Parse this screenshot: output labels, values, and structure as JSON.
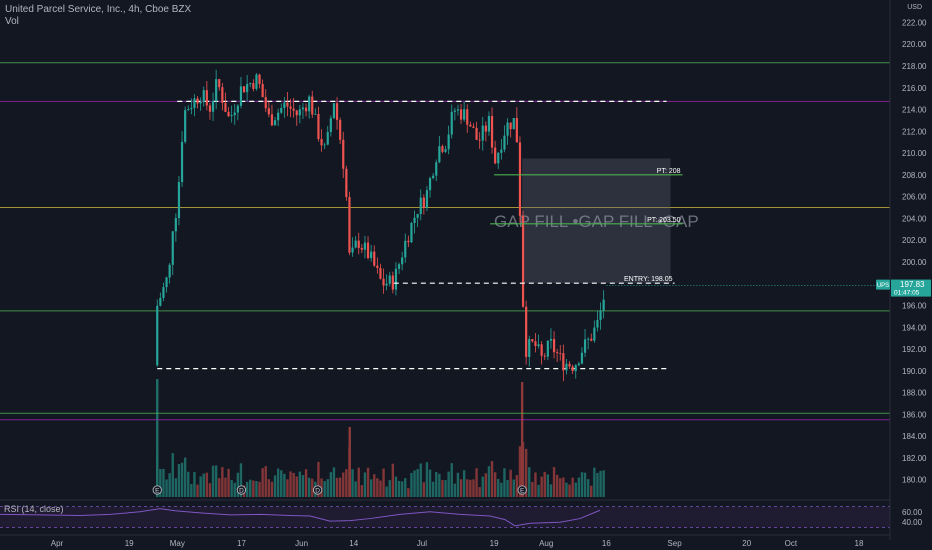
{
  "header": {
    "title": "United Parcel Service, Inc., 4h, Cboe BZX",
    "vol_label": "Vol",
    "currency": "USD"
  },
  "rsi": {
    "label": "RSI (14, close)",
    "ticks": [
      "60.00",
      "40.00"
    ],
    "ylim": [
      25,
      75
    ],
    "points": [
      [
        0,
        55
      ],
      [
        40,
        54
      ],
      [
        80,
        53
      ],
      [
        110,
        55
      ],
      [
        140,
        60
      ],
      [
        160,
        66
      ],
      [
        175,
        62
      ],
      [
        200,
        58
      ],
      [
        230,
        54
      ],
      [
        260,
        55
      ],
      [
        290,
        53
      ],
      [
        310,
        52
      ],
      [
        330,
        42
      ],
      [
        350,
        43
      ],
      [
        370,
        47
      ],
      [
        400,
        55
      ],
      [
        430,
        60
      ],
      [
        460,
        55
      ],
      [
        490,
        52
      ],
      [
        505,
        45
      ],
      [
        515,
        33
      ],
      [
        530,
        38
      ],
      [
        560,
        40
      ],
      [
        580,
        47
      ],
      [
        600,
        63
      ]
    ],
    "colors": {
      "line": "#7e57c2",
      "band": "#2a1f3d",
      "band_edge": "#7e57c2"
    }
  },
  "price_label": {
    "symbol": "UPS",
    "value": "197.83",
    "countdown": "01:47:05"
  },
  "chart_data": {
    "type": "candlestick",
    "title": "United Parcel Service, Inc., 4h, Cboe BZX",
    "ylim": [
      178.5,
      222.5
    ],
    "yticks": [
      "222.00",
      "220.00",
      "218.00",
      "216.00",
      "214.00",
      "212.00",
      "210.00",
      "208.00",
      "206.00",
      "204.00",
      "202.00",
      "200.00",
      "198.00",
      "196.00",
      "194.00",
      "192.00",
      "190.00",
      "188.00",
      "186.00",
      "184.00",
      "182.00",
      "180.00"
    ],
    "xticks": [
      {
        "label": "Apr",
        "date": "2024-04-01"
      },
      {
        "label": "19",
        "date": "2024-04-19"
      },
      {
        "label": "May",
        "date": "2024-05-01"
      },
      {
        "label": "17",
        "date": "2024-05-17"
      },
      {
        "label": "Jun",
        "date": "2024-06-01"
      },
      {
        "label": "14",
        "date": "2024-06-14"
      },
      {
        "label": "Jul",
        "date": "2024-07-01"
      },
      {
        "label": "19",
        "date": "2024-07-19"
      },
      {
        "label": "Aug",
        "date": "2024-08-01"
      },
      {
        "label": "16",
        "date": "2024-08-16"
      },
      {
        "label": "Sep",
        "date": "2024-09-02"
      },
      {
        "label": "20",
        "date": "2024-09-20"
      },
      {
        "label": "Oct",
        "date": "2024-10-01"
      },
      {
        "label": "18",
        "date": "2024-10-18"
      }
    ],
    "candle_path": [
      {
        "date": "2024-04-26",
        "price": 190.5
      },
      {
        "date": "2024-04-26",
        "price": 196
      },
      {
        "date": "2024-04-29",
        "price": 199
      },
      {
        "date": "2024-04-30",
        "price": 204
      },
      {
        "date": "2024-05-01",
        "price": 205
      },
      {
        "date": "2024-05-02",
        "price": 211
      },
      {
        "date": "2024-05-03",
        "price": 214
      },
      {
        "date": "2024-05-07",
        "price": 215.5
      },
      {
        "date": "2024-05-09",
        "price": 214
      },
      {
        "date": "2024-05-11",
        "price": 216.5
      },
      {
        "date": "2024-05-14",
        "price": 213
      },
      {
        "date": "2024-05-17",
        "price": 216
      },
      {
        "date": "2024-05-21",
        "price": 216.8
      },
      {
        "date": "2024-05-24",
        "price": 213
      },
      {
        "date": "2024-05-28",
        "price": 214.5
      },
      {
        "date": "2024-05-31",
        "price": 213.5
      },
      {
        "date": "2024-06-03",
        "price": 215
      },
      {
        "date": "2024-06-05",
        "price": 212
      },
      {
        "date": "2024-06-07",
        "price": 210
      },
      {
        "date": "2024-06-09",
        "price": 215
      },
      {
        "date": "2024-06-11",
        "price": 210.5
      },
      {
        "date": "2024-06-12",
        "price": 207
      },
      {
        "date": "2024-06-13",
        "price": 200
      },
      {
        "date": "2024-06-15",
        "price": 202
      },
      {
        "date": "2024-06-18",
        "price": 200.5
      },
      {
        "date": "2024-06-21",
        "price": 198
      },
      {
        "date": "2024-06-24",
        "price": 198.2
      },
      {
        "date": "2024-06-27",
        "price": 202
      },
      {
        "date": "2024-06-30",
        "price": 205
      },
      {
        "date": "2024-07-02",
        "price": 206
      },
      {
        "date": "2024-07-05",
        "price": 210.5
      },
      {
        "date": "2024-07-07",
        "price": 211
      },
      {
        "date": "2024-07-09",
        "price": 214
      },
      {
        "date": "2024-07-12",
        "price": 213.5
      },
      {
        "date": "2024-07-15",
        "price": 211
      },
      {
        "date": "2024-07-18",
        "price": 213
      },
      {
        "date": "2024-07-19",
        "price": 209
      },
      {
        "date": "2024-07-22",
        "price": 212.5
      },
      {
        "date": "2024-07-24",
        "price": 213
      },
      {
        "date": "2024-07-25",
        "price": 210.5
      },
      {
        "date": "2024-07-26",
        "price": 197.5
      },
      {
        "date": "2024-07-27",
        "price": 192
      },
      {
        "date": "2024-07-29",
        "price": 192.5
      },
      {
        "date": "2024-07-31",
        "price": 191
      },
      {
        "date": "2024-08-02",
        "price": 192.5
      },
      {
        "date": "2024-08-05",
        "price": 190.8
      },
      {
        "date": "2024-08-08",
        "price": 190.5
      },
      {
        "date": "2024-08-10",
        "price": 192
      },
      {
        "date": "2024-08-12",
        "price": 193
      },
      {
        "date": "2024-08-14",
        "price": 194.5
      },
      {
        "date": "2024-08-16",
        "price": 197.83
      }
    ],
    "horizontal_levels": [
      {
        "price": 218.3,
        "style": "solid",
        "color": "#4caf50"
      },
      {
        "price": 214.75,
        "style": "solid",
        "color": "#9c27b0"
      },
      {
        "price": 214.75,
        "style": "dashed",
        "color": "#ffffff",
        "from": "2024-05-01",
        "to": "2024-08-31"
      },
      {
        "price": 205.0,
        "style": "solid",
        "color": "#c9b23a"
      },
      {
        "price": 195.5,
        "style": "solid",
        "color": "#4caf50"
      },
      {
        "price": 190.2,
        "style": "dashed",
        "color": "#ffffff",
        "from": "2024-04-26",
        "to": "2024-08-31"
      },
      {
        "price": 186.1,
        "style": "solid",
        "color": "#4caf50"
      },
      {
        "price": 185.5,
        "style": "solid",
        "color": "#9c27b0"
      }
    ],
    "targets": [
      {
        "label": "PT: 208",
        "price": 208.0,
        "from": "2024-07-19",
        "to": "2024-09-04"
      },
      {
        "label": "PT: 203.50",
        "price": 203.5,
        "from": "2024-07-18",
        "to": "2024-09-04"
      },
      {
        "label": "ENTRY: 198.05",
        "price": 198.05,
        "from": "2024-06-24",
        "to": "2024-09-02",
        "style": "dashed"
      }
    ],
    "gap_zone": {
      "label": "GAP FILL •GAP FILL •GAP",
      "price_top": 209.5,
      "price_bottom": 198.05,
      "from": "2024-07-26",
      "to": "2024-09-01"
    },
    "event_markers": [
      {
        "date": "2024-04-26",
        "symbol": "E"
      },
      {
        "date": "2024-05-17",
        "symbol": "D"
      },
      {
        "date": "2024-06-05",
        "symbol": "D"
      },
      {
        "date": "2024-07-26",
        "symbol": "E"
      }
    ],
    "colors": {
      "up": "#26a69a",
      "down": "#ef5350",
      "vol_up": "#1f6f69",
      "vol_down": "#8f3a3a",
      "last_price": "#26a69a"
    }
  }
}
